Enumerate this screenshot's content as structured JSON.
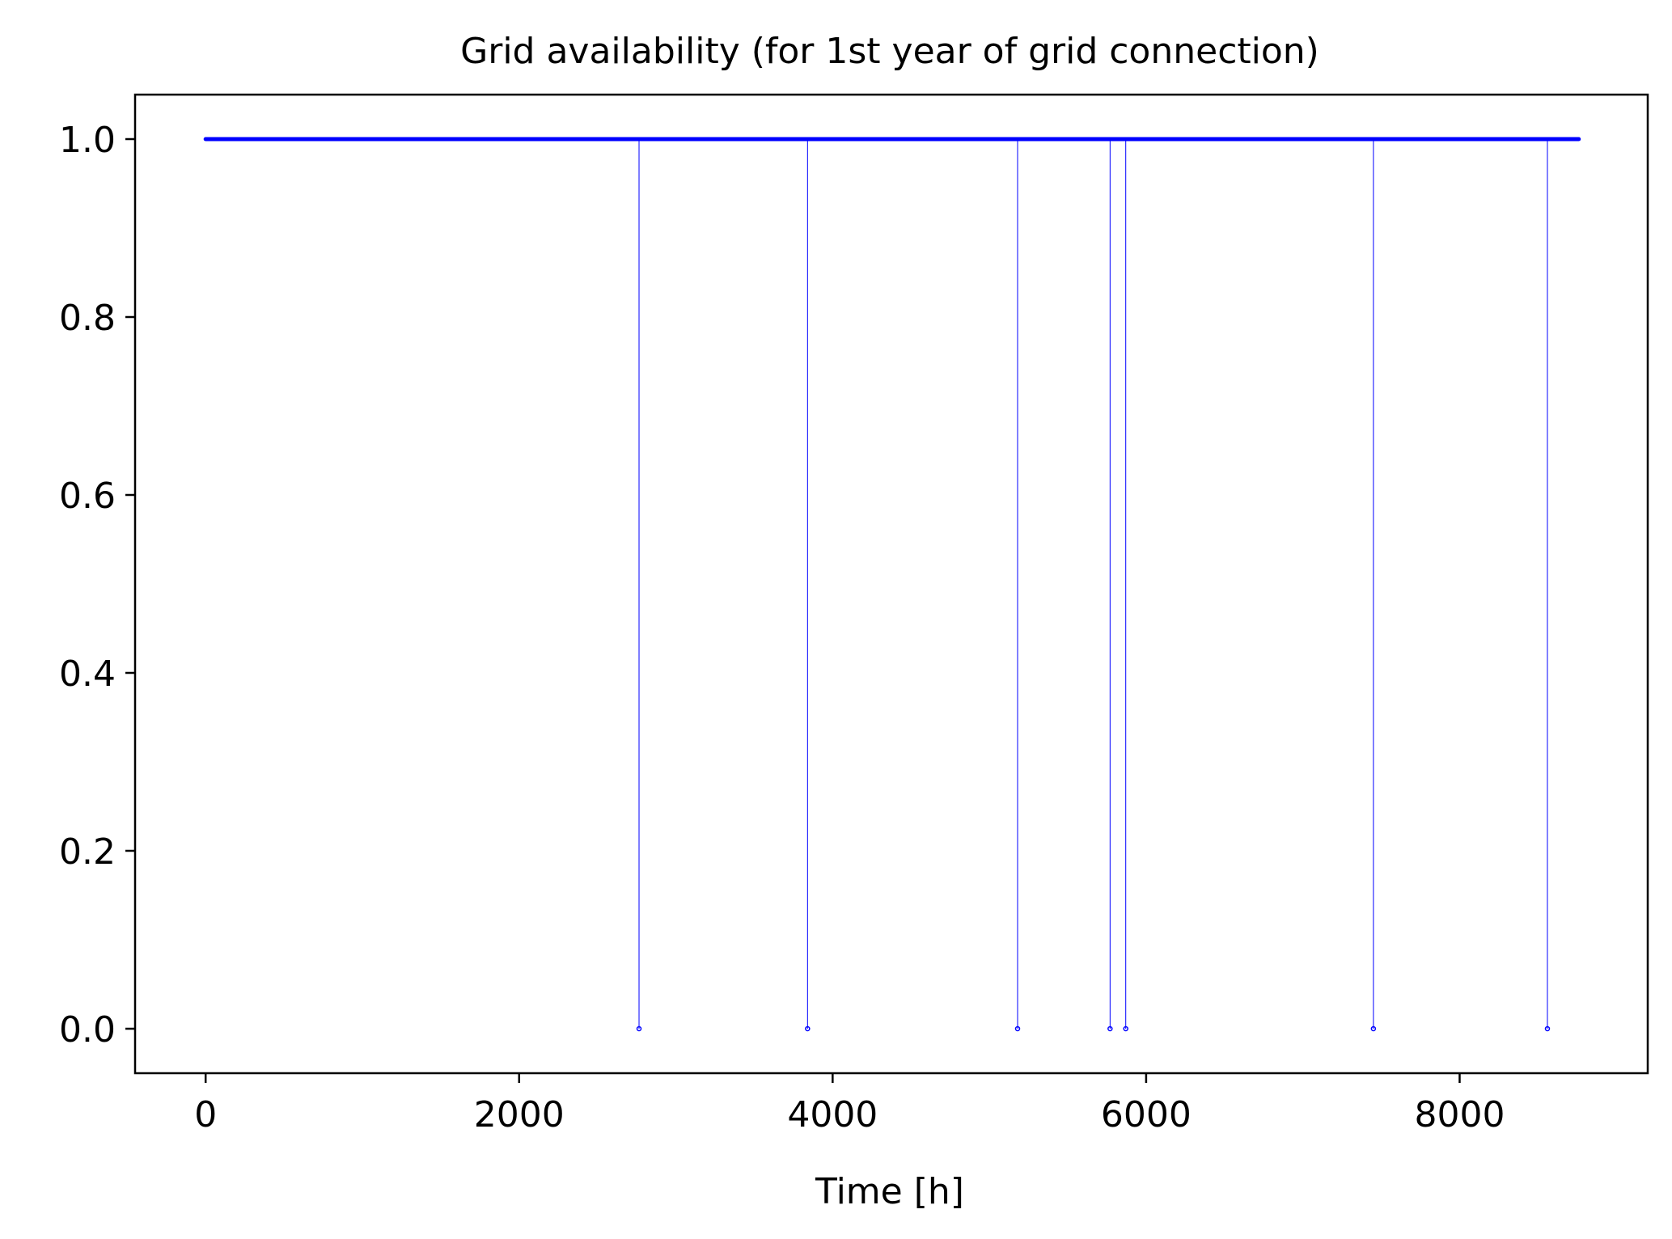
{
  "chart_data": {
    "type": "line",
    "title": "Grid availability (for 1st year of grid connection)",
    "xlabel": "Time [h]",
    "ylabel": "",
    "xlim": [
      -450,
      9200
    ],
    "ylim": [
      -0.05,
      1.05
    ],
    "x_ticks": [
      0,
      2000,
      4000,
      6000,
      8000
    ],
    "x_tick_labels": [
      "0",
      "2000",
      "4000",
      "6000",
      "8000"
    ],
    "y_ticks": [
      0.0,
      0.2,
      0.4,
      0.6,
      0.8,
      1.0
    ],
    "y_tick_labels": [
      "0.0",
      "0.2",
      "0.4",
      "0.6",
      "0.8",
      "1.0"
    ],
    "grid": false,
    "legend": "none",
    "series": [
      {
        "color": "#0000ff",
        "marker": "dot",
        "x_range": [
          0,
          8760
        ],
        "baseline_value": 1.0,
        "outages": [
          {
            "x": 2765,
            "value": 0.0
          },
          {
            "x": 3840,
            "value": 0.0
          },
          {
            "x": 5180,
            "value": 0.0
          },
          {
            "x": 5770,
            "value": 0.0
          },
          {
            "x": 5870,
            "value": 0.0
          },
          {
            "x": 7450,
            "value": 0.0
          },
          {
            "x": 8560,
            "value": 0.0
          }
        ]
      }
    ]
  }
}
